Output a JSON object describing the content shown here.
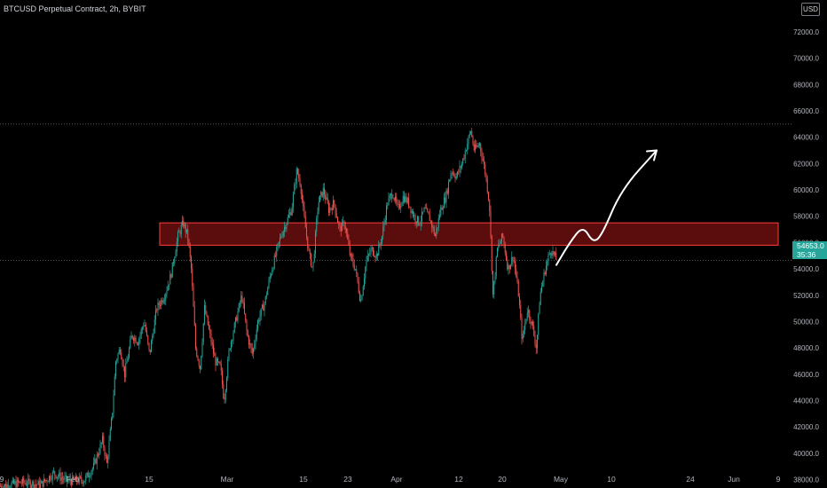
{
  "header": {
    "title": "BTCUSD Perpetual Contract, 2h, BYBIT",
    "currency": "USD"
  },
  "price_tag": {
    "price": "54653.0",
    "countdown": "35:36"
  },
  "colors": {
    "background": "#000000",
    "up": "#26a69a",
    "down": "#ef5350",
    "zone_fill": "#6b0f0f",
    "zone_border": "#ff3b3b",
    "axis_text": "#b2b5be",
    "grid_dotted": "#555a66",
    "arrow": "#ffffff"
  },
  "chart_data": {
    "type": "candlestick",
    "title": "BTCUSD Perpetual Contract, 2h, BYBIT",
    "y_axis": {
      "unit": "USD",
      "ticks": [
        "38000.0",
        "40000.0",
        "42000.0",
        "44000.0",
        "46000.0",
        "48000.0",
        "50000.0",
        "52000.0",
        "54000.0",
        "56000.0",
        "58000.0",
        "60000.0",
        "62000.0",
        "64000.0",
        "66000.0",
        "68000.0",
        "70000.0",
        "72000.0"
      ],
      "range": [
        37300,
        73000
      ]
    },
    "x_axis": {
      "ticks": [
        "9",
        "Feb",
        "15",
        "Mar",
        "15",
        "23",
        "Apr",
        "12",
        "20",
        "May",
        "10",
        "24",
        "Jun",
        "9"
      ]
    },
    "close_path": [
      [
        0,
        37500
      ],
      [
        25,
        37800
      ],
      [
        45,
        37600
      ],
      [
        60,
        38500
      ],
      [
        75,
        37900
      ],
      [
        95,
        38000
      ],
      [
        105,
        39000
      ],
      [
        115,
        41000
      ],
      [
        120,
        39200
      ],
      [
        126,
        43000
      ],
      [
        130,
        47000
      ],
      [
        135,
        48000
      ],
      [
        140,
        46000
      ],
      [
        148,
        49000
      ],
      [
        155,
        48500
      ],
      [
        162,
        50000
      ],
      [
        168,
        47500
      ],
      [
        176,
        51000
      ],
      [
        185,
        52000
      ],
      [
        192,
        53500
      ],
      [
        200,
        56500
      ],
      [
        206,
        57500
      ],
      [
        211,
        56500
      ],
      [
        215,
        54000
      ],
      [
        220,
        48000
      ],
      [
        225,
        46500
      ],
      [
        230,
        51000
      ],
      [
        236,
        49000
      ],
      [
        242,
        47000
      ],
      [
        248,
        46500
      ],
      [
        252,
        44000
      ],
      [
        258,
        48000
      ],
      [
        265,
        50000
      ],
      [
        272,
        52000
      ],
      [
        278,
        49000
      ],
      [
        284,
        47500
      ],
      [
        290,
        50000
      ],
      [
        298,
        51500
      ],
      [
        304,
        53500
      ],
      [
        310,
        55000
      ],
      [
        316,
        56500
      ],
      [
        322,
        57500
      ],
      [
        328,
        58500
      ],
      [
        334,
        61500
      ],
      [
        338,
        60500
      ],
      [
        342,
        58000
      ],
      [
        348,
        55000
      ],
      [
        352,
        54000
      ],
      [
        358,
        59000
      ],
      [
        364,
        60000
      ],
      [
        370,
        58500
      ],
      [
        376,
        59000
      ],
      [
        382,
        57000
      ],
      [
        388,
        57500
      ],
      [
        394,
        55000
      ],
      [
        400,
        54000
      ],
      [
        406,
        51500
      ],
      [
        412,
        54500
      ],
      [
        418,
        55500
      ],
      [
        424,
        55000
      ],
      [
        430,
        56500
      ],
      [
        436,
        59000
      ],
      [
        442,
        59800
      ],
      [
        448,
        58500
      ],
      [
        454,
        59500
      ],
      [
        460,
        59000
      ],
      [
        466,
        58000
      ],
      [
        472,
        57500
      ],
      [
        478,
        58500
      ],
      [
        484,
        57800
      ],
      [
        490,
        56500
      ],
      [
        496,
        58500
      ],
      [
        502,
        59500
      ],
      [
        508,
        61500
      ],
      [
        514,
        61000
      ],
      [
        520,
        62000
      ],
      [
        526,
        63500
      ],
      [
        530,
        64500
      ],
      [
        534,
        63000
      ],
      [
        540,
        63500
      ],
      [
        546,
        61500
      ],
      [
        551,
        59000
      ],
      [
        555,
        52000
      ],
      [
        560,
        55500
      ],
      [
        566,
        56500
      ],
      [
        572,
        54000
      ],
      [
        578,
        55000
      ],
      [
        584,
        52000
      ],
      [
        588,
        48500
      ],
      [
        594,
        51000
      ],
      [
        600,
        49500
      ],
      [
        604,
        48000
      ],
      [
        608,
        52000
      ],
      [
        614,
        54000
      ],
      [
        620,
        55500
      ],
      [
        627,
        54653
      ]
    ],
    "resistance_zone": {
      "y_range": [
        55800,
        57500
      ],
      "x_range_dates": [
        "Jan 24",
        "Jun 12"
      ]
    },
    "reference_lines": [
      {
        "y": 65000,
        "style": "dotted"
      },
      {
        "y": 54653,
        "style": "dotted"
      }
    ],
    "projection": {
      "type": "arrow",
      "path": [
        [
          627,
          54300
        ],
        [
          642,
          56000
        ],
        [
          657,
          57300
        ],
        [
          668,
          56000
        ],
        [
          678,
          56500
        ],
        [
          700,
          60000
        ],
        [
          740,
          63000
        ]
      ]
    }
  }
}
